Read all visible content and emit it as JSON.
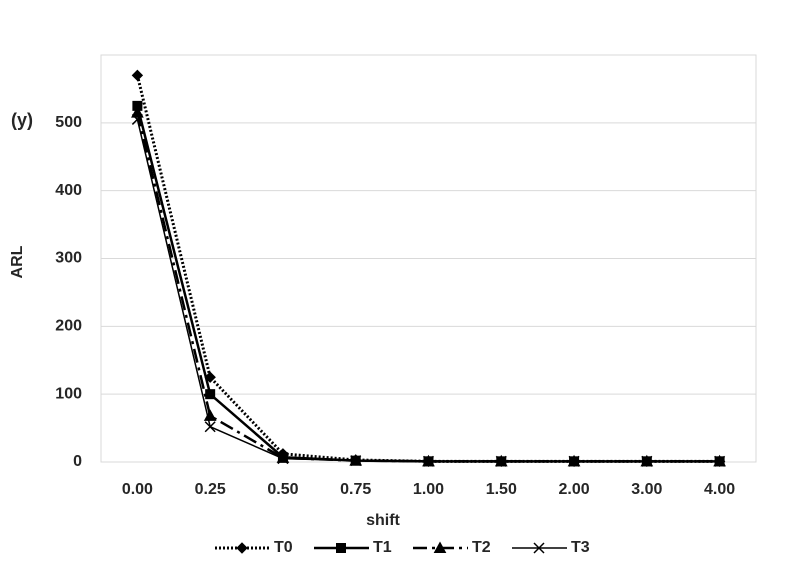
{
  "chart_data": {
    "type": "line",
    "annotation": "(y)",
    "x_label": "shift",
    "y_label": "ARL",
    "categories": [
      "0.00",
      "0.25",
      "0.50",
      "0.75",
      "1.00",
      "1.50",
      "2.00",
      "3.00",
      "4.00"
    ],
    "series": [
      {
        "name": "T0",
        "color": "#000000",
        "dash": "dotted",
        "marker": "diamond",
        "values": [
          570,
          125,
          12,
          3,
          1,
          1,
          1,
          1,
          1
        ]
      },
      {
        "name": "T1",
        "color": "#000000",
        "dash": "solid-thick",
        "marker": "square",
        "values": [
          525,
          100,
          7,
          2,
          1,
          1,
          1,
          1,
          1
        ]
      },
      {
        "name": "T2",
        "color": "#000000",
        "dash": "dashdot",
        "marker": "triangle",
        "values": [
          515,
          68,
          6,
          2,
          1,
          1,
          1,
          1,
          1
        ]
      },
      {
        "name": "T3",
        "color": "#000000",
        "dash": "solid",
        "marker": "x",
        "values": [
          505,
          52,
          5,
          2,
          1,
          1,
          1,
          1,
          1
        ]
      }
    ],
    "ylim": [
      0,
      600
    ],
    "yticks": [
      0,
      100,
      200,
      300,
      400,
      500
    ],
    "grid": true,
    "legend": "bottom"
  }
}
